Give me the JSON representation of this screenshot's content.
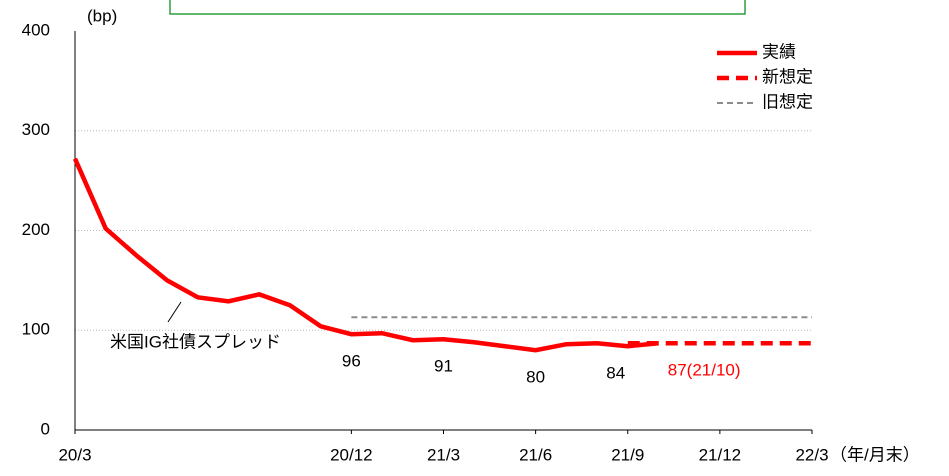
{
  "chart_data": {
    "type": "line",
    "y_label": "(bp)",
    "x_label": "（年/月末）",
    "annotation": "米国IG社債スプレッド",
    "xlim": [
      0,
      24
    ],
    "xticks": [
      {
        "value": 0,
        "label": "20/3"
      },
      {
        "value": 9,
        "label": "20/12"
      },
      {
        "value": 12,
        "label": "21/3"
      },
      {
        "value": 15,
        "label": "21/6"
      },
      {
        "value": 18,
        "label": "21/9"
      },
      {
        "value": 21,
        "label": "21/12"
      },
      {
        "value": 24,
        "label": "22/3"
      }
    ],
    "ylim": [
      0,
      400
    ],
    "yticks": [
      0,
      100,
      200,
      300,
      400
    ],
    "grid": true,
    "legend": "top-right",
    "series": [
      {
        "name": "実績",
        "color": "#ff0000",
        "style": "solid",
        "x": [
          0,
          1,
          2,
          3,
          4,
          5,
          6,
          7,
          8,
          9,
          10,
          11,
          12,
          13,
          14,
          15,
          16,
          17,
          18,
          19
        ],
        "values": [
          272,
          202,
          175,
          150,
          133,
          129,
          136,
          125,
          104,
          96,
          97,
          90,
          91,
          88,
          84,
          80,
          86,
          87,
          84,
          87
        ],
        "value_labels": [
          null,
          null,
          null,
          null,
          null,
          null,
          null,
          null,
          null,
          "96",
          null,
          null,
          "91",
          null,
          null,
          "80",
          null,
          null,
          "84",
          null
        ]
      },
      {
        "name": "新想定",
        "color": "#ff0000",
        "style": "dashed",
        "x": [
          18,
          24
        ],
        "values": [
          87,
          87
        ],
        "value_labels": [
          "87(21/10)",
          null
        ]
      },
      {
        "name": "旧想定",
        "color": "#8c8c8c",
        "style": "dotted",
        "x": [
          9,
          24
        ],
        "values": [
          113,
          113
        ]
      }
    ]
  }
}
